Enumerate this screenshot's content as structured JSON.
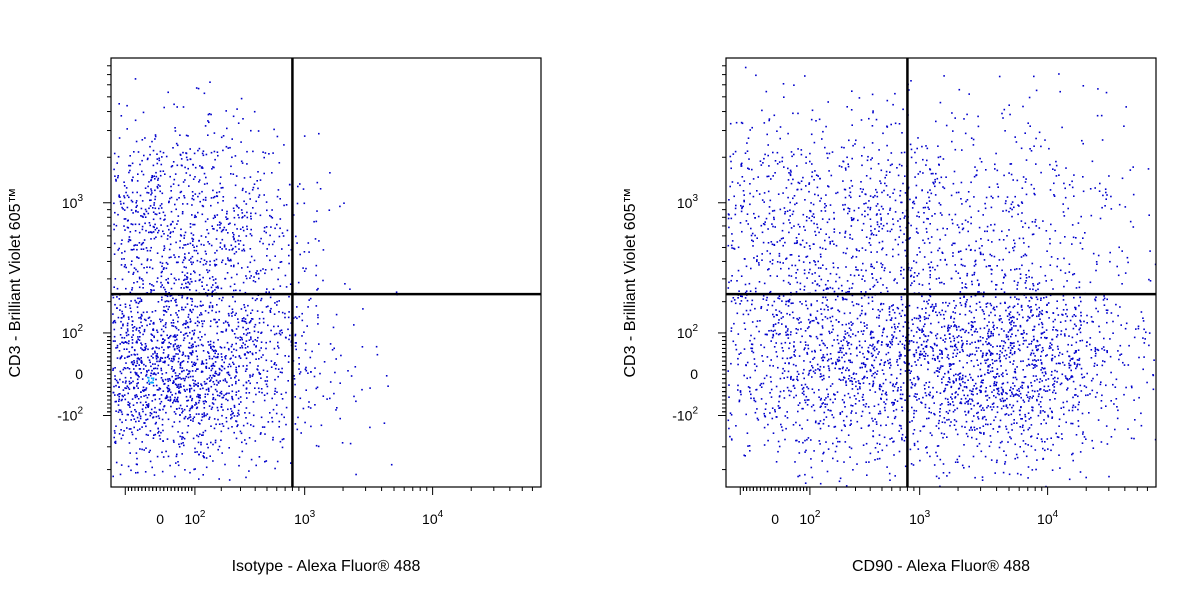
{
  "chart_data": [
    {
      "type": "scatter",
      "style": "pseudocolor density dot plot",
      "xlabel": "Isotype - Alexa Fluor® 488",
      "ylabel": "CD3 - Brilliant Violet 605™",
      "x_ticks": [
        {
          "value": 0,
          "label": "0"
        },
        {
          "value": 100,
          "base": "10",
          "exp": "2"
        },
        {
          "value": 1000,
          "base": "10",
          "exp": "3"
        },
        {
          "value": 10000,
          "base": "10",
          "exp": "4"
        }
      ],
      "y_ticks": [
        {
          "value": -100,
          "base": "-10",
          "exp": "2"
        },
        {
          "value": 0,
          "label": "0"
        },
        {
          "value": 100,
          "base": "10",
          "exp": "2"
        },
        {
          "value": 1000,
          "base": "10",
          "exp": "3"
        }
      ],
      "xlim": [
        -150,
        70000
      ],
      "ylim": [
        -400,
        9000
      ],
      "quadrant_gate": {
        "x": 800,
        "y": 230
      },
      "density_colors": [
        "#0000cc",
        "#00a0ff",
        "#00cc00",
        "#ffff00",
        "#ff8800",
        "#ff0000"
      ],
      "populations": [
        {
          "center": [
            30,
            800
          ],
          "spread": [
            0.55,
            0.35
          ],
          "count": 1000,
          "dense": true
        },
        {
          "center": [
            30,
            20
          ],
          "spread": [
            0.6,
            0.35
          ],
          "count": 2200,
          "dense": true
        },
        {
          "center": [
            400,
            300
          ],
          "spread": [
            0.15,
            0.25
          ],
          "count": 30,
          "dense": false
        }
      ]
    },
    {
      "type": "scatter",
      "style": "pseudocolor density dot plot",
      "xlabel": "CD90 - Alexa Fluor® 488",
      "ylabel": "CD3 - Brilliant Violet 605™",
      "x_ticks": [
        {
          "value": 0,
          "label": "0"
        },
        {
          "value": 100,
          "base": "10",
          "exp": "2"
        },
        {
          "value": 1000,
          "base": "10",
          "exp": "3"
        },
        {
          "value": 10000,
          "base": "10",
          "exp": "4"
        }
      ],
      "y_ticks": [
        {
          "value": -100,
          "base": "-10",
          "exp": "2"
        },
        {
          "value": 0,
          "label": "0"
        },
        {
          "value": 100,
          "base": "10",
          "exp": "2"
        },
        {
          "value": 1000,
          "base": "10",
          "exp": "3"
        }
      ],
      "xlim": [
        -150,
        70000
      ],
      "ylim": [
        -400,
        9000
      ],
      "quadrant_gate": {
        "x": 800,
        "y": 230
      },
      "density_colors": [
        "#0000cc",
        "#00a0ff",
        "#00cc00",
        "#ffff00",
        "#ff8800",
        "#ff0000"
      ],
      "populations": [
        {
          "center": [
            100,
            800
          ],
          "spread": [
            0.9,
            0.4
          ],
          "count": 1100,
          "dense": false
        },
        {
          "center": [
            4000,
            800
          ],
          "spread": [
            0.8,
            0.4
          ],
          "count": 380,
          "dense": false
        },
        {
          "center": [
            200,
            30
          ],
          "spread": [
            0.75,
            0.35
          ],
          "count": 1500,
          "dense": true
        },
        {
          "center": [
            5000,
            20
          ],
          "spread": [
            0.5,
            0.35
          ],
          "count": 1300,
          "dense": true
        }
      ]
    }
  ]
}
